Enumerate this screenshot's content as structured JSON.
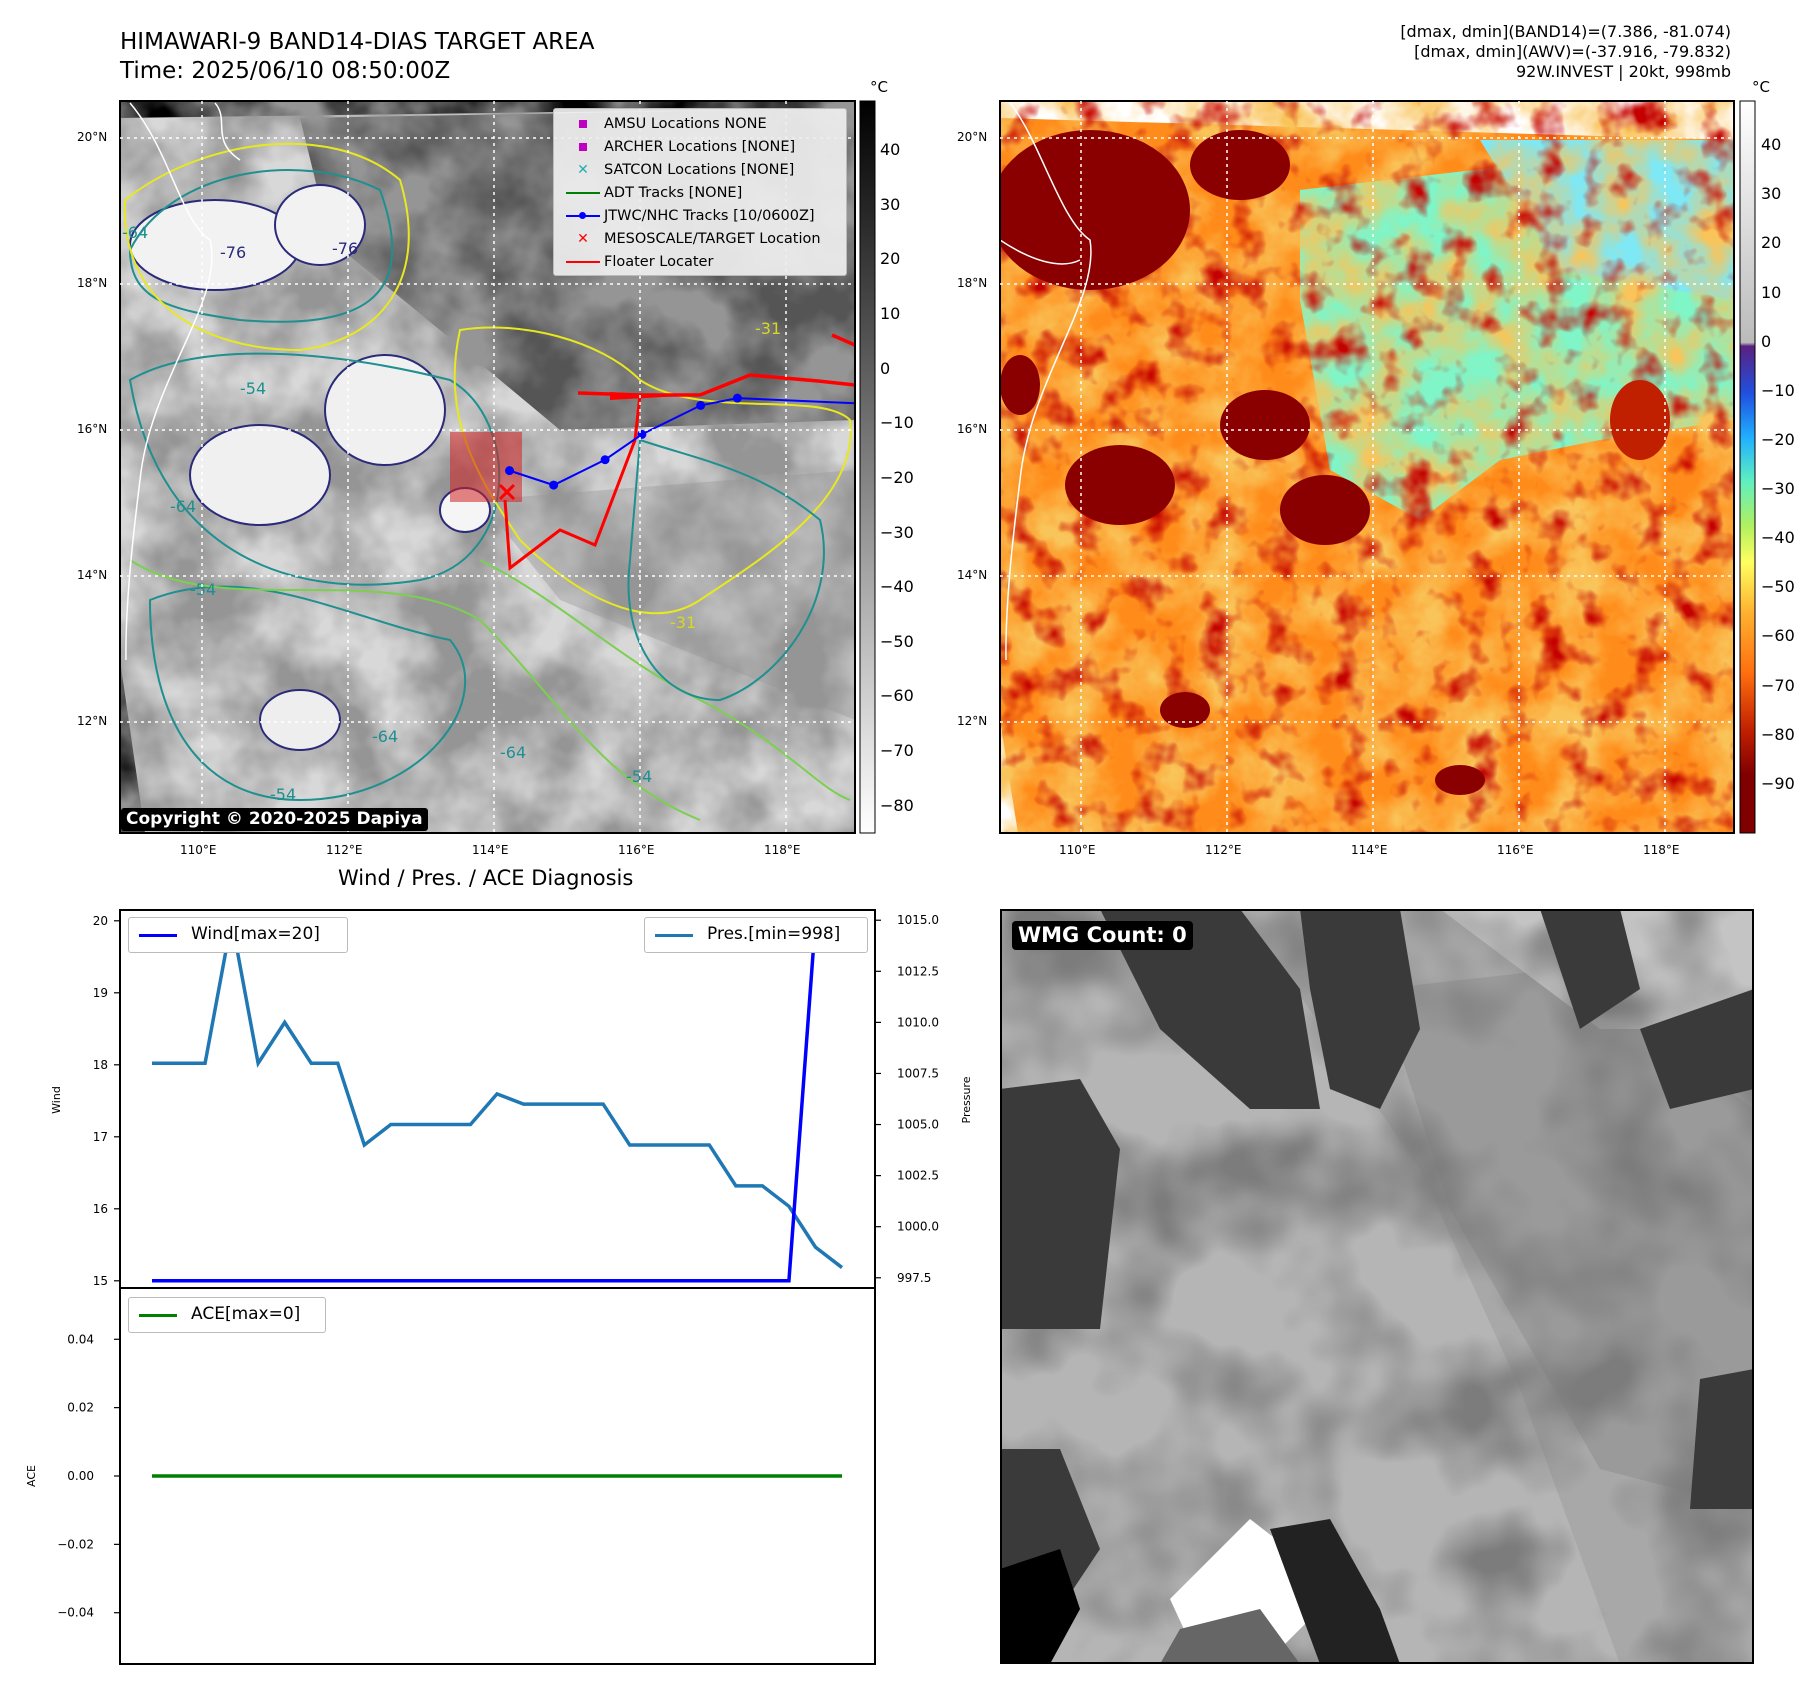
{
  "header": {
    "title_line1": "HIMAWARI-9 BAND14-DIAS TARGET AREA",
    "title_line2": "Time: 2025/06/10 08:50:00Z",
    "right_line1": "[dmax, dmin](BAND14)=(7.386, -81.074)",
    "right_line2": "[dmax, dmin](AWV)=(-37.916, -79.832)",
    "right_line3": "92W.INVEST | 20kt, 998mb"
  },
  "map_axes": {
    "lon_labels": [
      "110°E",
      "112°E",
      "114°E",
      "116°E",
      "118°E"
    ],
    "lat_labels": [
      "20°N",
      "18°N",
      "16°N",
      "14°N",
      "12°N"
    ],
    "lon_range": [
      108.9,
      118.9
    ],
    "lat_range": [
      10.4,
      20.5
    ]
  },
  "left_map": {
    "copyright": "Copyright © 2020-2025 Dapiya",
    "contour_labels": [
      "-76",
      "-76",
      "-64",
      "-54",
      "-64",
      "-31",
      "-54",
      "-64",
      "-64",
      "-54",
      "-54",
      "-31"
    ],
    "legend": [
      {
        "label": "AMSU Locations NONE",
        "symbol": "square",
        "color": "#c000c0"
      },
      {
        "label": "ARCHER Locations [NONE]",
        "symbol": "square",
        "color": "#c000c0"
      },
      {
        "label": "SATCON Locations [NONE]",
        "symbol": "x",
        "color": "#20b0b0"
      },
      {
        "label": "ADT Tracks [NONE]",
        "symbol": "line",
        "color": "#008000"
      },
      {
        "label": "JTWC/NHC Tracks [10/0600Z]",
        "symbol": "line-dot",
        "color": "#0000ff"
      },
      {
        "label": "MESOSCALE/TARGET Location",
        "symbol": "x",
        "color": "#ff0000"
      },
      {
        "label": "Floater Locater",
        "symbol": "line",
        "color": "#ff0000"
      }
    ],
    "colorbar_unit": "°C",
    "colorbar_ticks": [
      "40",
      "30",
      "20",
      "10",
      "0",
      "−10",
      "−20",
      "−30",
      "−40",
      "−50",
      "−60",
      "−70",
      "−80"
    ],
    "colorbar_range": [
      -85,
      49
    ],
    "jtwc_track": [
      [
        114.2,
        15.4
      ],
      [
        114.8,
        15.2
      ],
      [
        115.5,
        15.55
      ],
      [
        116.0,
        15.9
      ],
      [
        116.8,
        16.3
      ],
      [
        117.3,
        16.4
      ],
      [
        118.9,
        16.33
      ]
    ]
  },
  "right_map": {
    "colorbar_unit": "°C",
    "colorbar_ticks": [
      "40",
      "30",
      "20",
      "10",
      "0",
      "−10",
      "−20",
      "−30",
      "−40",
      "−50",
      "−60",
      "−70",
      "−80",
      "−90"
    ],
    "colorbar_range": [
      -100,
      49
    ]
  },
  "diagnosis": {
    "title": "Wind / Pres. / ACE Diagnosis",
    "wind_legend": "Wind[max=20]",
    "pres_legend": "Pres.[min=998]",
    "ace_legend": "ACE[max=0]",
    "wind_ylabel": "Wind",
    "pres_ylabel": "Pressure",
    "ace_ylabel": "ACE",
    "wind_ticks": [
      "20",
      "19",
      "18",
      "17",
      "16",
      "15"
    ],
    "pres_ticks": [
      "1015.0",
      "1012.5",
      "1010.0",
      "1007.5",
      "1005.0",
      "1002.5",
      "1000.0",
      "997.5"
    ],
    "ace_ticks": [
      "0.04",
      "0.02",
      "0.00",
      "−0.02",
      "−0.04"
    ]
  },
  "wmg": {
    "label": "WMG Count: 0"
  },
  "colors": {
    "wind": "#0000ff",
    "pressure": "#1f77b4",
    "ace": "#008000",
    "track": "#0000ff",
    "floater": "#ff0000"
  },
  "chart_data": [
    {
      "type": "line",
      "title": "Wind / Pres. / ACE Diagnosis",
      "ylabel": "Wind",
      "ylim": [
        14.9,
        20.15
      ],
      "series": [
        {
          "name": "Wind[max=20]",
          "axis": "left",
          "x": [
            0,
            1,
            2,
            3,
            4,
            5,
            6,
            7,
            8,
            9,
            10,
            11,
            12,
            13,
            14,
            15,
            16,
            17,
            18,
            19,
            20,
            21,
            22,
            23,
            24,
            25,
            26
          ],
          "values": [
            15,
            15,
            15,
            15,
            15,
            15,
            15,
            15,
            15,
            15,
            15,
            15,
            15,
            15,
            15,
            15,
            15,
            15,
            15,
            15,
            15,
            15,
            15,
            15,
            15,
            20,
            20
          ]
        },
        {
          "name": "Pres.[min=998]",
          "axis": "right",
          "ylim": [
            997,
            1015.5
          ],
          "x": [
            0,
            1,
            2,
            3,
            4,
            5,
            6,
            7,
            8,
            9,
            10,
            11,
            12,
            13,
            14,
            15,
            16,
            17,
            18,
            19,
            20,
            21,
            22,
            23,
            24,
            25,
            26
          ],
          "values": [
            1008,
            1008,
            1008,
            1015,
            1008,
            1010,
            1008,
            1008,
            1004,
            1005,
            1005,
            1005,
            1005,
            1006.5,
            1006,
            1006,
            1006,
            1006,
            1004,
            1004,
            1004,
            1004,
            1002,
            1002,
            1001,
            999,
            998
          ]
        }
      ]
    },
    {
      "type": "line",
      "ylabel": "ACE",
      "ylim": [
        -0.055,
        0.055
      ],
      "series": [
        {
          "name": "ACE[max=0]",
          "x": [
            0,
            1,
            2,
            3,
            4,
            5,
            6,
            7,
            8,
            9,
            10,
            11,
            12,
            13,
            14,
            15,
            16,
            17,
            18,
            19,
            20,
            21,
            22,
            23,
            24,
            25,
            26
          ],
          "values": [
            0,
            0,
            0,
            0,
            0,
            0,
            0,
            0,
            0,
            0,
            0,
            0,
            0,
            0,
            0,
            0,
            0,
            0,
            0,
            0,
            0,
            0,
            0,
            0,
            0,
            0,
            0
          ]
        }
      ]
    }
  ]
}
